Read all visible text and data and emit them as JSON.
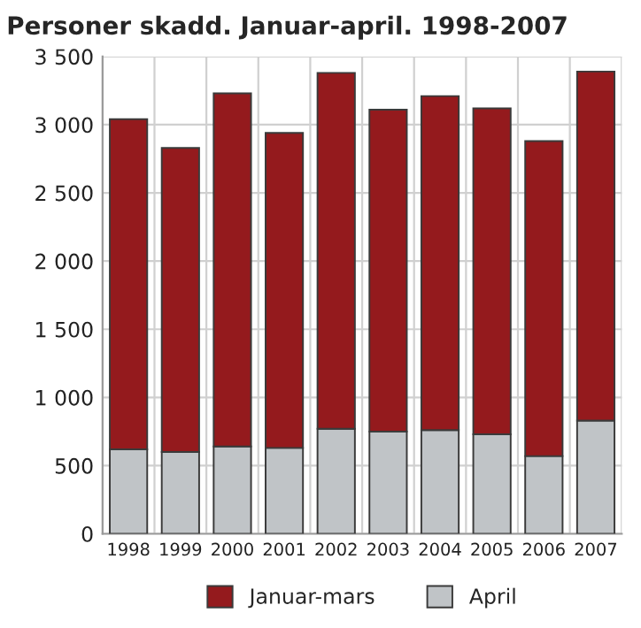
{
  "chart_data": {
    "type": "bar",
    "title": "Personer skadd. Januar-april. 1998-2007",
    "stacked": true,
    "categories": [
      "1998",
      "1999",
      "2000",
      "2001",
      "2002",
      "2003",
      "2004",
      "2005",
      "2006",
      "2007"
    ],
    "series": [
      {
        "name": "April",
        "color": "#c0c4c7",
        "values": [
          620,
          600,
          640,
          630,
          770,
          750,
          760,
          730,
          570,
          830
        ]
      },
      {
        "name": "Januar-mars",
        "color": "#941a1d",
        "values": [
          2420,
          2230,
          2590,
          2310,
          2610,
          2360,
          2450,
          2390,
          2310,
          2560
        ]
      }
    ],
    "ylim": [
      0,
      3500
    ],
    "yticks": [
      {
        "value": 0,
        "label": "0"
      },
      {
        "value": 500,
        "label": "500"
      },
      {
        "value": 1000,
        "label": "1 000"
      },
      {
        "value": 1500,
        "label": "1 500"
      },
      {
        "value": 2000,
        "label": "2 000"
      },
      {
        "value": 2500,
        "label": "2 500"
      },
      {
        "value": 3000,
        "label": "3 000"
      },
      {
        "value": 3500,
        "label": "3 500"
      }
    ],
    "grid": true,
    "legend": "bottom"
  }
}
